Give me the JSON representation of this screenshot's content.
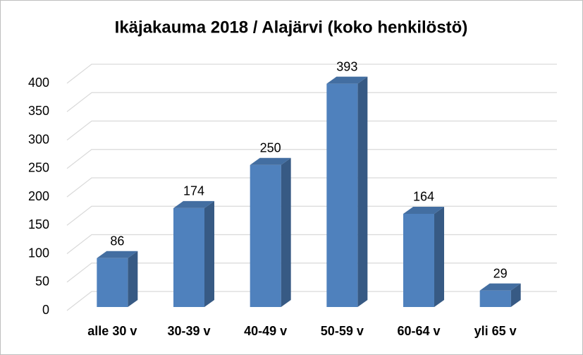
{
  "chart_data": {
    "type": "bar",
    "title": "Ikäjakauma 2018 / Alajärvi (koko henkilöstö)",
    "categories": [
      "alle 30 v",
      "30-39 v",
      "40-49 v",
      "50-59 v",
      "60-64 v",
      "yli 65 v"
    ],
    "values": [
      86,
      174,
      250,
      393,
      164,
      29
    ],
    "color": "#4f81bd",
    "ylim": [
      0,
      400
    ],
    "yticks": [
      0,
      50,
      100,
      150,
      200,
      250,
      300,
      350,
      400
    ],
    "grid": true
  }
}
